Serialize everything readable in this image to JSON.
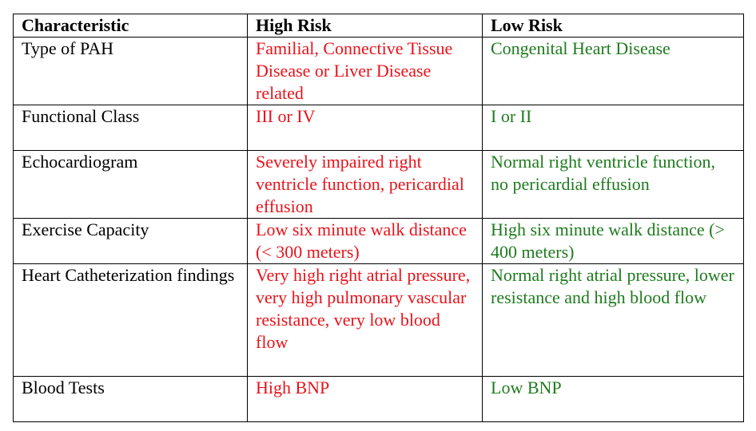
{
  "table": {
    "headers": {
      "characteristic": "Characteristic",
      "high_risk": "High Risk",
      "low_risk": "Low Risk"
    },
    "rows": [
      {
        "characteristic": "Type of PAH",
        "high": "Familial, Connective Tissue Disease or Liver Disease related",
        "low": "Congenital Heart Disease"
      },
      {
        "characteristic": "Functional Class",
        "high": "III or IV",
        "low": "I or II"
      },
      {
        "characteristic": "Echocardiogram",
        "high": "Severely impaired right ventricle function, pericardial effusion",
        "low": "Normal right ventricle function, no pericardial effusion"
      },
      {
        "characteristic": "Exercise Capacity",
        "high": "Low six minute walk distance (< 300 meters)",
        "low": "High six minute walk distance (> 400 meters)"
      },
      {
        "characteristic": "Heart Catheterization findings",
        "high": "Very high right atrial pressure, very high pulmonary vascular resistance, very low blood flow",
        "low": "Normal right atrial pressure, lower resistance and high blood flow"
      },
      {
        "characteristic": "Blood Tests",
        "high": "High BNP",
        "low": "Low BNP"
      }
    ]
  },
  "colors": {
    "high_risk_text": "#e8131b",
    "low_risk_text": "#1e7b1e",
    "border": "#000000"
  }
}
